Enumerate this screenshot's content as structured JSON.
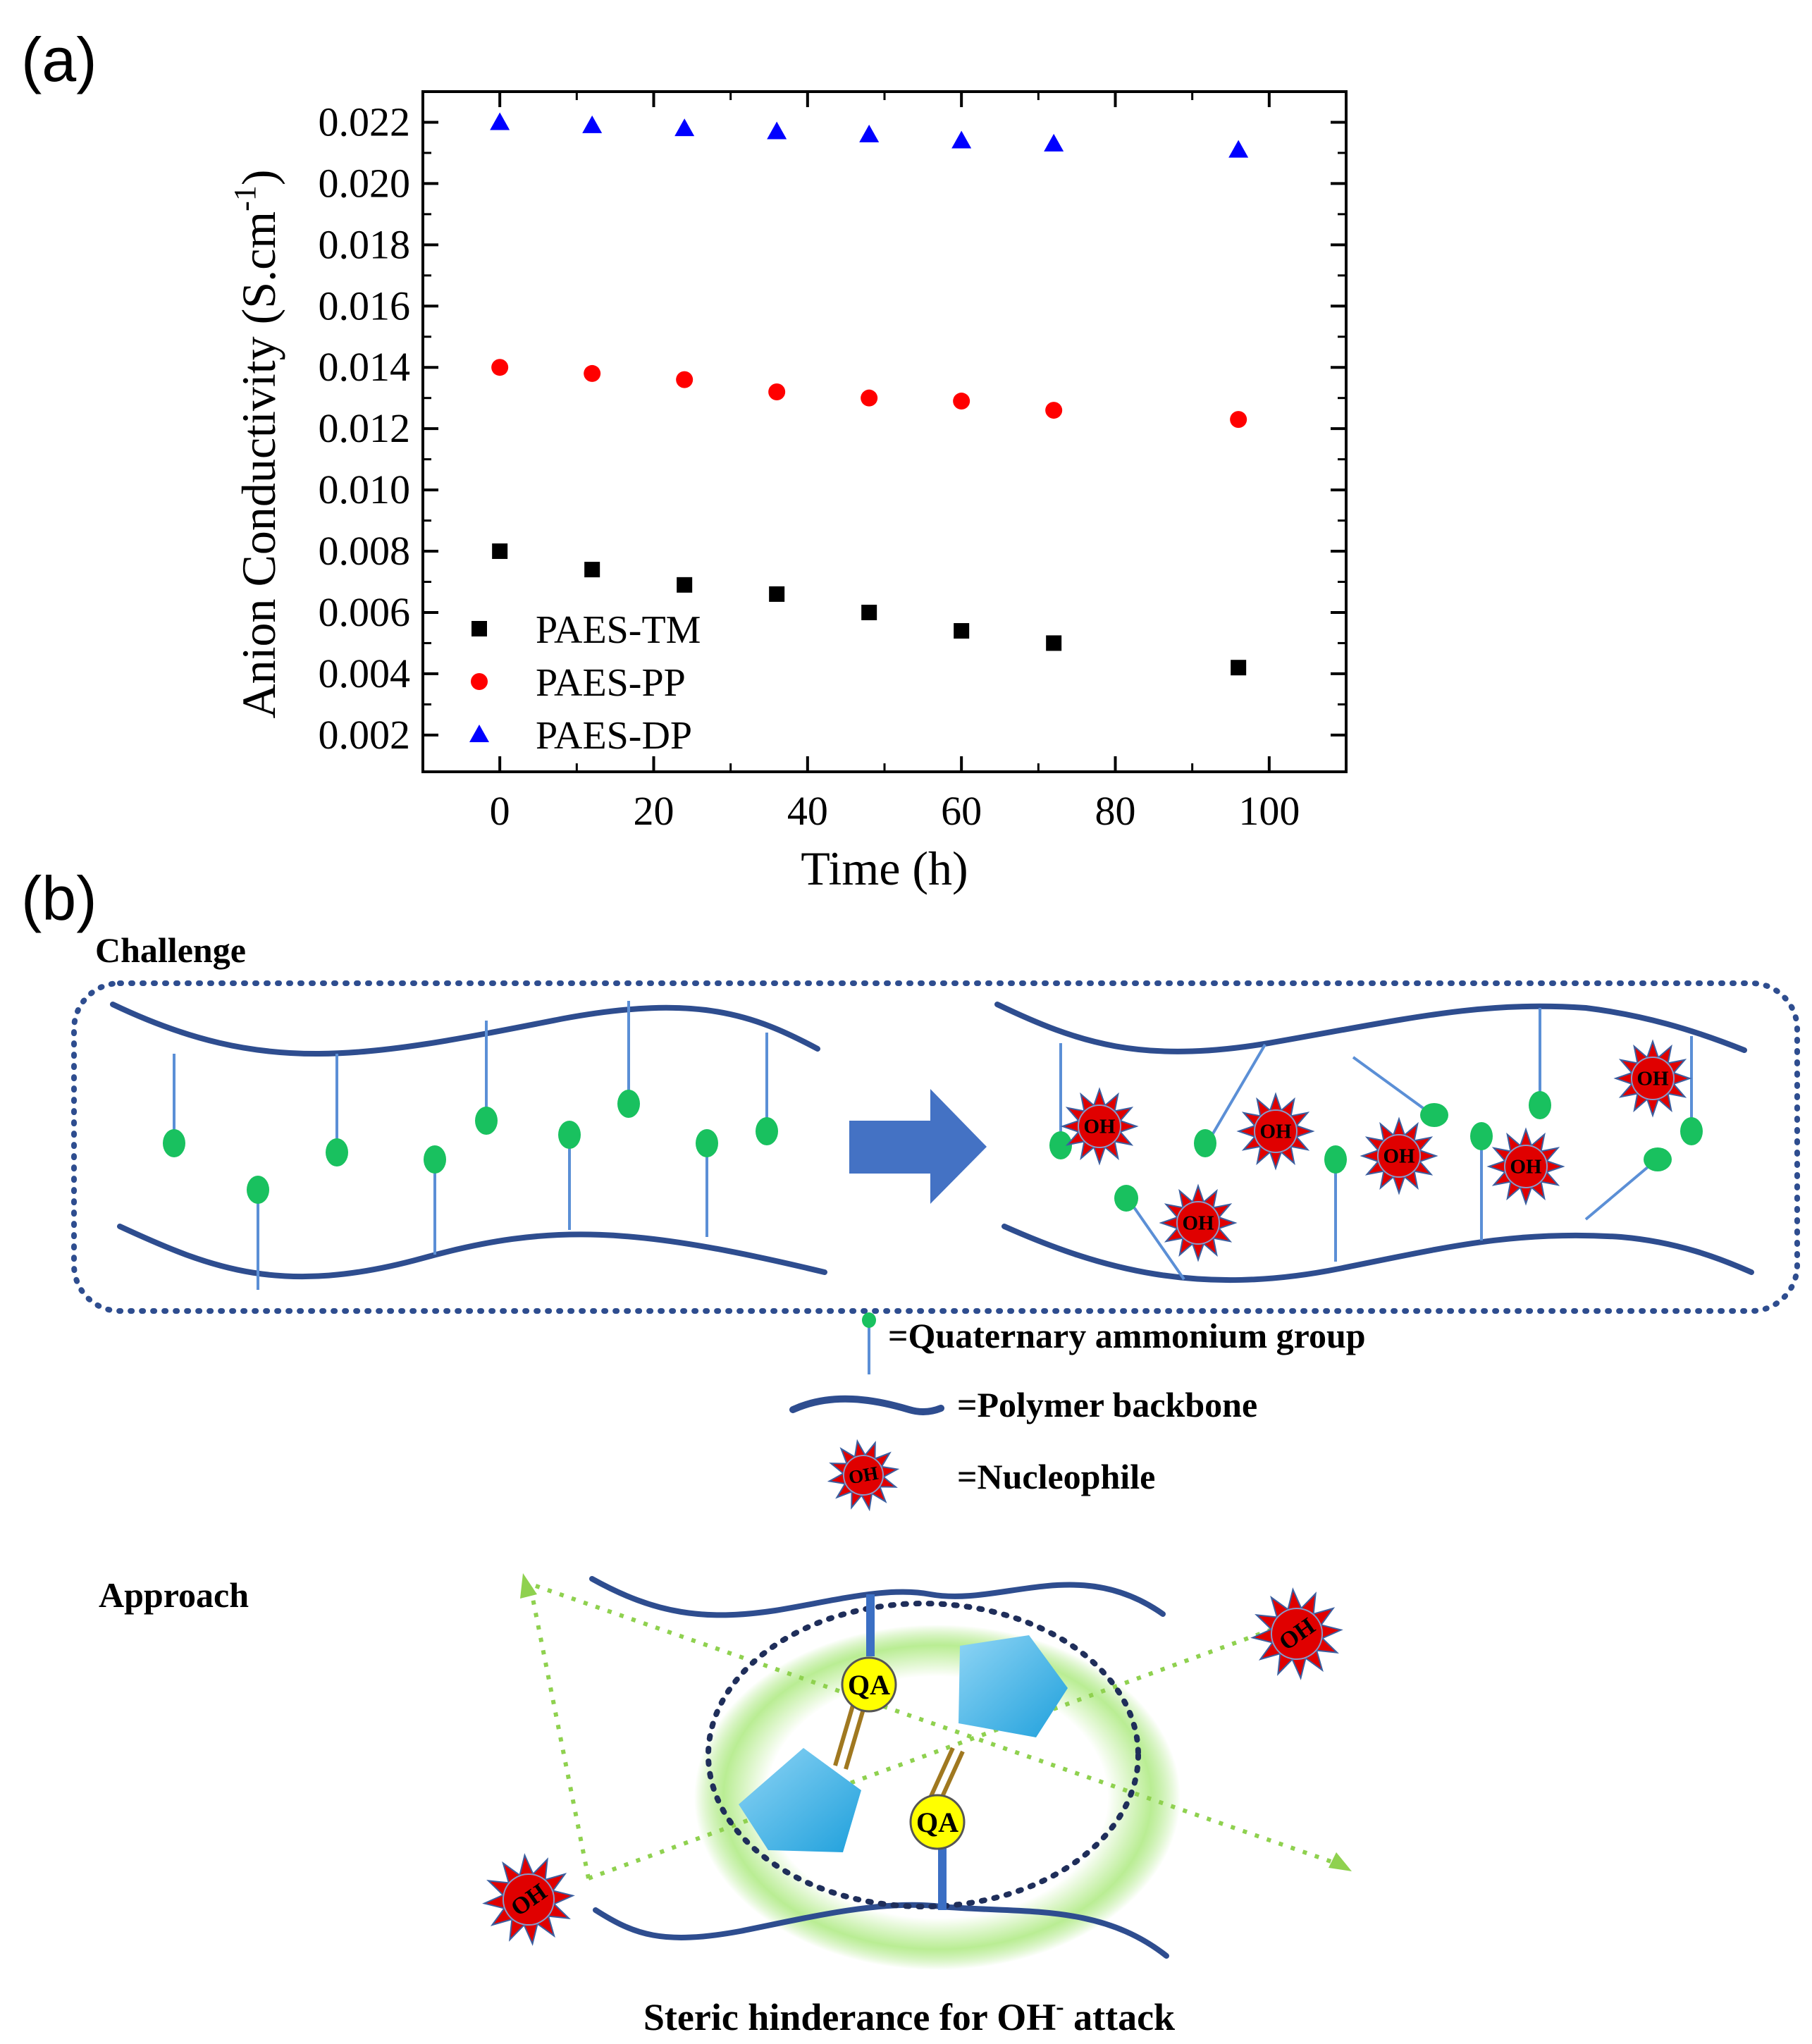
{
  "panel_a_label": "(a)",
  "panel_b_label": "(b)",
  "chart_data": {
    "type": "scatter",
    "title": "",
    "xlabel": "Time (h)",
    "ylabel": "Anion Conductivity (S.cm",
    "ylabel_sup": "-1",
    "ylabel_end": ")",
    "xlim": [
      -10,
      110
    ],
    "ylim": [
      0.0008,
      0.023
    ],
    "x_ticks": [
      0,
      20,
      40,
      60,
      80,
      100
    ],
    "y_ticks": [
      0.002,
      0.004,
      0.006,
      0.008,
      0.01,
      0.012,
      0.014,
      0.016,
      0.018,
      0.02,
      0.022
    ],
    "y_tick_labels": [
      "0.002",
      "0.004",
      "0.006",
      "0.008",
      "0.010",
      "0.012",
      "0.014",
      "0.016",
      "0.018",
      "0.020",
      "0.022"
    ],
    "x": [
      0,
      12,
      24,
      36,
      48,
      60,
      72,
      96
    ],
    "series": [
      {
        "name": "PAES-TM",
        "marker": "square",
        "color": "#000000",
        "values": [
          0.008,
          0.0074,
          0.0069,
          0.0066,
          0.006,
          0.0054,
          0.005,
          0.0042
        ]
      },
      {
        "name": "PAES-PP",
        "marker": "circle",
        "color": "#ff0000",
        "values": [
          0.014,
          0.0138,
          0.0136,
          0.0132,
          0.013,
          0.0129,
          0.0126,
          0.0123
        ]
      },
      {
        "name": "PAES-DP",
        "marker": "triangle",
        "color": "#0000ff",
        "values": [
          0.022,
          0.0219,
          0.0218,
          0.0217,
          0.0216,
          0.0214,
          0.0213,
          0.0211
        ]
      }
    ],
    "legend_position": "bottom-left"
  },
  "diagram": {
    "challenge_label": "Challenge",
    "approach_label": "Approach",
    "legend": {
      "quaternary": "=Quaternary ammonium group",
      "backbone": "=Polymer backbone",
      "nucleophile": "=Nucleophile"
    },
    "oh_label": "OH",
    "qa_label": "QA",
    "caption_prefix": "Steric hinderance for OH",
    "caption_sup": "-",
    "caption_suffix": " attack",
    "colors": {
      "backbone": "#2e4d8f",
      "pendant": "#5b8fd6",
      "green": "#19c15f",
      "arrow": "#4472c4",
      "nucleophile": "#e00000",
      "spike": "#3b5fa0",
      "pentagon": "#2aa3d8",
      "qa": "#ffff00",
      "glow": "#9be36a",
      "dotted_arrow": "#8fd14f"
    }
  }
}
